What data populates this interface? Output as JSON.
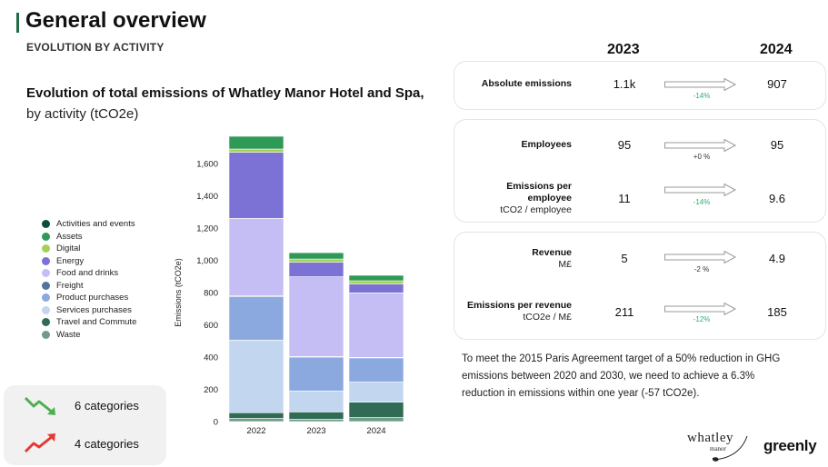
{
  "header": {
    "title": "General overview",
    "subtitle": "EVOLUTION BY ACTIVITY"
  },
  "chart_title": {
    "bold": "Evolution of total emissions of Whatley Manor Hotel and Spa,",
    "normal": "by activity (tCO2e)"
  },
  "chart_data": {
    "type": "bar",
    "stacked": true,
    "categories": [
      "2022",
      "2023",
      "2024"
    ],
    "ylabel": "Emissions (tCO2e)",
    "ylim": [
      0,
      1700
    ],
    "yticks": [
      0,
      200,
      400,
      600,
      800,
      "1,000",
      "1,200",
      "1,400",
      "1,600"
    ],
    "series": [
      {
        "name": "Waste",
        "color": "#6f9d88",
        "values": [
          20,
          15,
          25
        ]
      },
      {
        "name": "Travel and Commute",
        "color": "#2f6b55",
        "values": [
          35,
          45,
          95
        ]
      },
      {
        "name": "Services purchases",
        "color": "#c3d6ef",
        "values": [
          450,
          130,
          125
        ]
      },
      {
        "name": "Product purchases",
        "color": "#8ba9df",
        "values": [
          270,
          210,
          150
        ]
      },
      {
        "name": "Freight",
        "color": "#52739d",
        "values": [
          5,
          3,
          3
        ]
      },
      {
        "name": "Food and drinks",
        "color": "#c5bef4",
        "values": [
          480,
          495,
          400
        ]
      },
      {
        "name": "Energy",
        "color": "#7c72d6",
        "values": [
          410,
          90,
          55
        ]
      },
      {
        "name": "Digital",
        "color": "#a6cf58",
        "values": [
          20,
          20,
          20
        ]
      },
      {
        "name": "Assets",
        "color": "#2f9a55",
        "values": [
          80,
          40,
          35
        ]
      },
      {
        "name": "Activities and events",
        "color": "#0d4d3a",
        "values": [
          2,
          2,
          2
        ]
      }
    ]
  },
  "legend": [
    {
      "label": "Activities and events",
      "color": "#0d4d3a"
    },
    {
      "label": "Assets",
      "color": "#2f9a55"
    },
    {
      "label": "Digital",
      "color": "#a6cf58"
    },
    {
      "label": "Energy",
      "color": "#7c72d6"
    },
    {
      "label": "Food and drinks",
      "color": "#c5bef4"
    },
    {
      "label": "Freight",
      "color": "#52739d"
    },
    {
      "label": "Product purchases",
      "color": "#8ba9df"
    },
    {
      "label": "Services purchases",
      "color": "#c3d6ef"
    },
    {
      "label": "Travel and Commute",
      "color": "#2f6b55"
    },
    {
      "label": "Waste",
      "color": "#6f9d88"
    }
  ],
  "trend": {
    "down_label": "6 categories",
    "up_label": "4 categories",
    "down_color": "#4caf50",
    "up_color": "#e53935"
  },
  "kpis": {
    "year1": "2023",
    "year2": "2024",
    "absolute": {
      "label": "Absolute emissions",
      "v1": "1.1k",
      "v2": "907",
      "pct": "-14%"
    },
    "employees": {
      "label": "Employees",
      "v1": "95",
      "v2": "95",
      "pct": "+0 %"
    },
    "per_employee": {
      "label1": "Emissions per",
      "label2": "employee",
      "unit": "tCO2 / employee",
      "v1": "11",
      "v2": "9.6",
      "pct": "-14%"
    },
    "revenue": {
      "label": "Revenue",
      "unit": "M£",
      "v1": "5",
      "v2": "4.9",
      "pct": "-2 %"
    },
    "per_revenue": {
      "label": "Emissions per revenue",
      "unit": "tCO2e / M£",
      "v1": "211",
      "v2": "185",
      "pct": "-12%"
    },
    "green": "#2eaf6a",
    "neutral": "#333333"
  },
  "note": "To meet the 2015 Paris Agreement target of a 50% reduction in GHG emissions between 2020 and 2030, we need to achieve a 6.3% reduction in emissions within one year (-57 tCO2e).",
  "logos": {
    "whatley": "whatley",
    "manor": "manor",
    "greenly": "greenly"
  }
}
